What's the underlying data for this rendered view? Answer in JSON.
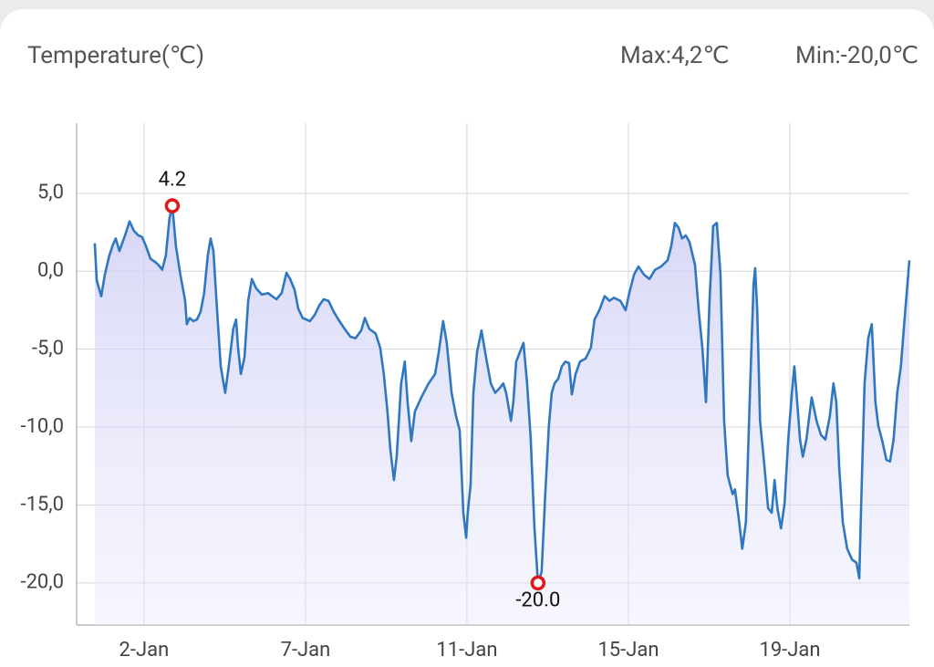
{
  "chart_data": {
    "type": "line",
    "title": "Temperature(℃)",
    "header_stats": [
      "Max:4,2℃",
      "Min:-20,0℃"
    ],
    "xlim": [
      1.33,
      21.96
    ],
    "ylim": [
      -22.7,
      9.5
    ],
    "xticks": [
      {
        "value": 3,
        "label": "2-Jan"
      },
      {
        "value": 7,
        "label": "7-Jan"
      },
      {
        "value": 11,
        "label": "11-Jan"
      },
      {
        "value": 15,
        "label": "15-Jan"
      },
      {
        "value": 19,
        "label": "19-Jan"
      }
    ],
    "yticks": [
      {
        "value": 5,
        "label": "5,0"
      },
      {
        "value": 0,
        "label": "0,0"
      },
      {
        "value": -5,
        "label": "-5,0"
      },
      {
        "value": -10,
        "label": "-10,0"
      },
      {
        "value": -15,
        "label": "-15,0"
      },
      {
        "value": -20,
        "label": "-20,0"
      }
    ],
    "grid": true,
    "series": [
      {
        "color": "#2f78c0",
        "x": [
          1.78,
          1.83,
          1.94,
          2.03,
          2.14,
          2.23,
          2.3,
          2.39,
          2.53,
          2.64,
          2.75,
          2.86,
          2.95,
          3.05,
          3.16,
          3.27,
          3.36,
          3.45,
          3.54,
          3.63,
          3.7,
          3.79,
          3.9,
          4.02,
          4.06,
          4.13,
          4.22,
          4.31,
          4.4,
          4.49,
          4.58,
          4.65,
          4.72,
          4.81,
          4.9,
          5.01,
          5.1,
          5.21,
          5.28,
          5.33,
          5.4,
          5.49,
          5.58,
          5.67,
          5.78,
          5.92,
          6.07,
          6.28,
          6.41,
          6.53,
          6.62,
          6.73,
          6.82,
          6.93,
          7.11,
          7.23,
          7.34,
          7.45,
          7.57,
          7.7,
          7.84,
          7.97,
          8.11,
          8.24,
          8.38,
          8.47,
          8.58,
          8.74,
          8.85,
          8.94,
          9.03,
          9.1,
          9.19,
          9.26,
          9.37,
          9.46,
          9.53,
          9.62,
          9.71,
          9.87,
          10.05,
          10.21,
          10.3,
          10.41,
          10.5,
          10.62,
          10.73,
          10.82,
          10.91,
          10.98,
          11.02,
          11.09,
          11.16,
          11.25,
          11.36,
          11.47,
          11.59,
          11.7,
          11.81,
          11.9,
          11.97,
          12.09,
          12.15,
          12.22,
          12.31,
          12.4,
          12.49,
          12.58,
          12.67,
          12.76,
          12.85,
          12.94,
          13.03,
          13.1,
          13.17,
          13.26,
          13.35,
          13.44,
          13.53,
          13.6,
          13.69,
          13.8,
          13.94,
          14.07,
          14.16,
          14.28,
          14.41,
          14.53,
          14.64,
          14.8,
          14.93,
          15.02,
          15.14,
          15.25,
          15.38,
          15.52,
          15.66,
          15.81,
          15.97,
          16.06,
          16.15,
          16.24,
          16.33,
          16.42,
          16.51,
          16.65,
          16.74,
          16.83,
          16.92,
          17.01,
          17.1,
          17.19,
          17.28,
          17.37,
          17.46,
          17.58,
          17.64,
          17.73,
          17.82,
          17.91,
          18.01,
          18.1,
          18.14,
          18.19,
          18.26,
          18.37,
          18.46,
          18.55,
          18.62,
          18.69,
          18.78,
          18.87,
          18.96,
          19.05,
          19.11,
          19.18,
          19.25,
          19.32,
          19.41,
          19.54,
          19.66,
          19.77,
          19.88,
          19.99,
          20.08,
          20.15,
          20.22,
          20.31,
          20.42,
          20.54,
          20.65,
          20.72,
          20.76,
          20.85,
          20.94,
          21.03,
          21.12,
          21.19,
          21.28,
          21.39,
          21.48,
          21.57,
          21.66,
          21.75,
          21.84,
          21.96
        ],
        "values": [
          1.8,
          -0.6,
          -1.6,
          -0.2,
          1.0,
          1.7,
          2.1,
          1.3,
          2.3,
          3.2,
          2.6,
          2.3,
          2.2,
          1.6,
          0.8,
          0.6,
          0.4,
          0.1,
          1.0,
          3.4,
          4.2,
          1.6,
          -0.2,
          -1.9,
          -3.4,
          -3.0,
          -3.2,
          -3.1,
          -2.6,
          -1.4,
          1.0,
          2.1,
          1.3,
          -2.5,
          -6.1,
          -7.8,
          -6.1,
          -3.7,
          -3.1,
          -4.9,
          -6.6,
          -5.5,
          -1.9,
          -0.5,
          -1.1,
          -1.5,
          -1.4,
          -1.8,
          -1.4,
          -0.1,
          -0.5,
          -1.2,
          -2.4,
          -3.0,
          -3.2,
          -2.8,
          -2.2,
          -1.8,
          -1.9,
          -2.6,
          -3.2,
          -3.7,
          -4.2,
          -4.3,
          -3.8,
          -3.0,
          -3.7,
          -4.0,
          -4.9,
          -6.6,
          -9.0,
          -11.4,
          -13.4,
          -11.9,
          -7.2,
          -5.8,
          -8.4,
          -10.9,
          -9.0,
          -8.1,
          -7.2,
          -6.6,
          -5.2,
          -3.2,
          -4.6,
          -7.8,
          -9.3,
          -10.2,
          -15.5,
          -17.1,
          -15.5,
          -13.7,
          -7.8,
          -5.2,
          -3.8,
          -5.5,
          -7.2,
          -7.8,
          -7.5,
          -7.2,
          -7.8,
          -9.6,
          -8.4,
          -5.8,
          -5.2,
          -4.6,
          -7.2,
          -10.8,
          -16.4,
          -20.0,
          -19.3,
          -14.3,
          -9.9,
          -7.8,
          -7.2,
          -6.9,
          -6.1,
          -5.8,
          -5.9,
          -7.9,
          -6.6,
          -5.8,
          -5.6,
          -4.9,
          -3.1,
          -2.5,
          -1.6,
          -1.9,
          -1.7,
          -1.9,
          -2.5,
          -1.4,
          -0.2,
          0.3,
          -0.2,
          -0.5,
          0.1,
          0.3,
          0.7,
          1.6,
          3.1,
          2.8,
          2.1,
          2.3,
          1.9,
          0.4,
          -2.5,
          -4.9,
          -8.4,
          -1.9,
          2.9,
          3.1,
          -0.2,
          -9.6,
          -13.1,
          -14.3,
          -14.0,
          -15.8,
          -17.8,
          -16.1,
          -7.8,
          -0.8,
          0.2,
          -2.5,
          -9.6,
          -12.5,
          -15.2,
          -15.5,
          -13.4,
          -15.2,
          -16.5,
          -14.9,
          -10.8,
          -7.8,
          -6.1,
          -8.4,
          -10.8,
          -11.9,
          -10.8,
          -8.1,
          -9.6,
          -10.5,
          -10.8,
          -9.3,
          -7.2,
          -8.4,
          -12.5,
          -16.1,
          -17.8,
          -18.5,
          -18.7,
          -19.7,
          -15.5,
          -7.2,
          -4.3,
          -3.4,
          -8.4,
          -9.9,
          -10.8,
          -12.1,
          -12.2,
          -10.8,
          -7.8,
          -6.1,
          -3.1,
          0.7
        ]
      }
    ],
    "markers": [
      {
        "x": 3.7,
        "value": 4.2,
        "label": "4.2"
      },
      {
        "x": 12.76,
        "value": -20,
        "label": "-20.0"
      }
    ],
    "marker_color": "#e01818"
  }
}
